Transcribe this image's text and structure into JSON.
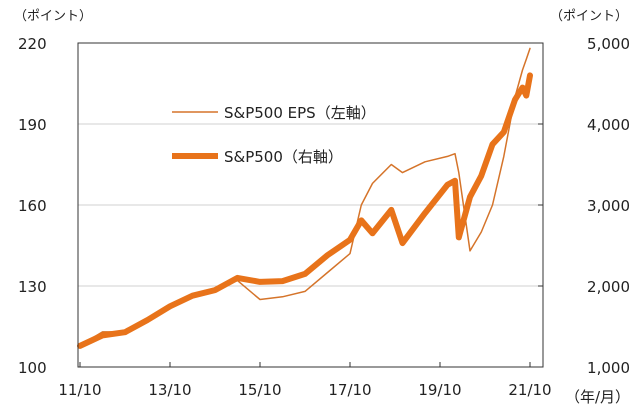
{
  "chart_data": {
    "type": "line",
    "y_left_unit": "（ポイント）",
    "y_right_unit": "（ポイント）",
    "x_unit": "（年/月）",
    "x_ticks": [
      "11/10",
      "13/10",
      "15/10",
      "17/10",
      "19/10",
      "21/10"
    ],
    "y_left_ticks": [
      "100",
      "130",
      "160",
      "190",
      "220"
    ],
    "y_right_ticks": [
      "1,000",
      "2,000",
      "3,000",
      "4,000",
      "5,000"
    ],
    "ylim_left": [
      100,
      220
    ],
    "ylim_right": [
      1000,
      5000
    ],
    "grid": "horizontal",
    "legend_position": "upper-left",
    "colors": {
      "eps": "#D5742A",
      "price": "#E8731A"
    },
    "x": [
      "2011-10",
      "2012-04",
      "2012-10",
      "2013-04",
      "2013-10",
      "2014-04",
      "2014-10",
      "2015-04",
      "2015-10",
      "2016-04",
      "2016-10",
      "2017-04",
      "2017-10",
      "2018-01",
      "2018-04",
      "2018-09",
      "2018-12",
      "2019-06",
      "2019-12",
      "2020-02",
      "2020-03",
      "2020-06",
      "2020-09",
      "2020-12",
      "2021-03",
      "2021-06",
      "2021-08",
      "2021-09",
      "2021-10"
    ],
    "series": [
      {
        "name": "S&P500 EPS（左軸）",
        "axis": "left",
        "style": "thin",
        "values": [
          108,
          113,
          113,
          117,
          122,
          126,
          129,
          132,
          125,
          126,
          128,
          135,
          142,
          160,
          168,
          175,
          172,
          176,
          178,
          179,
          172,
          143,
          150,
          160,
          178,
          200,
          210,
          214,
          218
        ]
      },
      {
        "name": "S&P500（右軸）",
        "axis": "right",
        "style": "thick",
        "values": [
          1260,
          1390,
          1430,
          1580,
          1750,
          1880,
          1950,
          2100,
          2050,
          2060,
          2150,
          2380,
          2570,
          2810,
          2650,
          2940,
          2530,
          2900,
          3250,
          3300,
          2600,
          3100,
          3360,
          3750,
          3900,
          4300,
          4450,
          4350,
          4600
        ]
      }
    ]
  }
}
